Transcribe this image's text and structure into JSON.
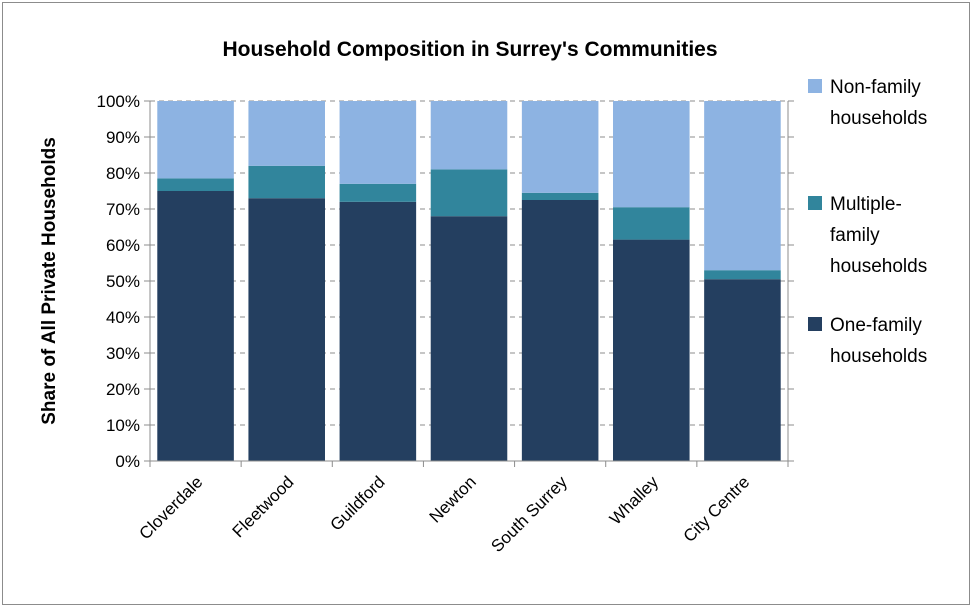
{
  "chart_data": {
    "type": "bar",
    "stacked": true,
    "title": "Household Composition in Surrey's Communities",
    "ylabel": "Share of All Private Households",
    "xlabel": "",
    "ylim": [
      0,
      100
    ],
    "yticks": [
      "0%",
      "10%",
      "20%",
      "30%",
      "40%",
      "50%",
      "60%",
      "70%",
      "80%",
      "90%",
      "100%"
    ],
    "categories": [
      "Cloverdale",
      "Fleetwood",
      "Guildford",
      "Newton",
      "South Surrey",
      "Whalley",
      "City Centre"
    ],
    "series": [
      {
        "name": "One-family households",
        "color": "#243f60",
        "values": [
          75,
          73,
          72,
          68,
          72.5,
          61.5,
          50.5
        ]
      },
      {
        "name": "Multiple-family households",
        "color": "#31859c",
        "values": [
          3.5,
          9,
          5,
          13,
          2,
          9,
          2.5
        ]
      },
      {
        "name": "Non-family households",
        "color": "#8db3e2",
        "values": [
          21.5,
          18,
          23,
          19,
          25.5,
          29.5,
          47
        ]
      }
    ],
    "legend": {
      "placement": "right",
      "entries": [
        {
          "lines": [
            "Non-family",
            "households"
          ],
          "color": "#8db3e2"
        },
        {
          "lines": [
            "Multiple-",
            "family",
            "households"
          ],
          "color": "#31859c"
        },
        {
          "lines": [
            "One-family",
            "households"
          ],
          "color": "#243f60"
        }
      ]
    },
    "grid": "dashed-horizontal"
  }
}
